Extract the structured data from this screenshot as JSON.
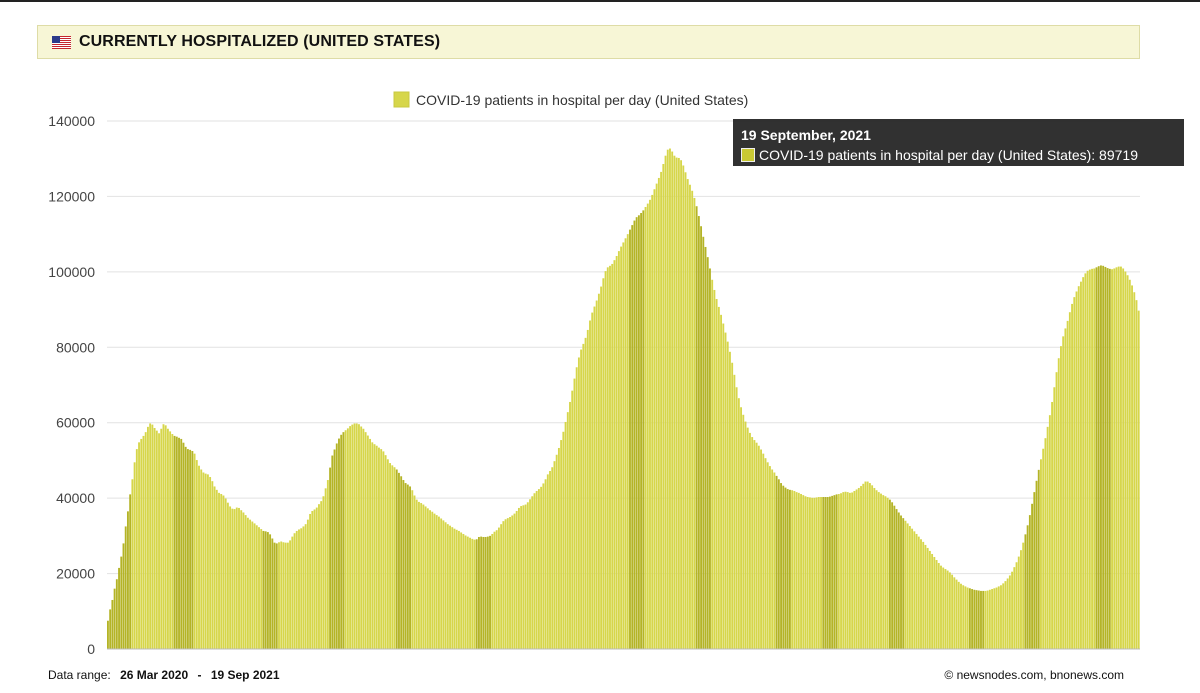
{
  "header": {
    "title": "CURRENTLY HOSPITALIZED (UNITED STATES)",
    "flag_icon": "us-flag-icon"
  },
  "tooltip": {
    "date": "19 September, 2021",
    "series_label": "COVID-19 patients in hospital per day (United States): 89719",
    "swatch_color": "#c9c934"
  },
  "footer": {
    "range_label": "Data range:",
    "range_start": "26 Mar 2020",
    "range_sep": "-",
    "range_end": "19 Sep 2021",
    "copyright": "©  newsnodes.com, bnonews.com"
  },
  "chart_data": {
    "type": "bar",
    "title": "",
    "xlabel": "",
    "ylabel": "",
    "ylim": [
      0,
      140000
    ],
    "yticks": [
      0,
      20000,
      40000,
      60000,
      80000,
      100000,
      120000,
      140000
    ],
    "grid": true,
    "legend_position": "top-center",
    "bar_color": "#d6d64a",
    "highlight_color": "#b4b426",
    "x_start": "2020-03-26",
    "x_end": "2021-09-19",
    "series": [
      {
        "name": "COVID-19 patients in hospital per day (United States)",
        "values": [
          7500,
          10500,
          13000,
          16000,
          18500,
          21500,
          24500,
          28000,
          32500,
          36500,
          41000,
          45000,
          49500,
          53000,
          54800,
          55700,
          56500,
          57500,
          58900,
          59800,
          59500,
          58600,
          57900,
          57200,
          58400,
          59600,
          59300,
          58400,
          57700,
          57000,
          56500,
          56300,
          56000,
          55700,
          54700,
          53600,
          53000,
          52800,
          52500,
          51800,
          50100,
          48600,
          47600,
          46800,
          46500,
          46300,
          45600,
          44500,
          43100,
          42200,
          41400,
          41100,
          40700,
          39900,
          38800,
          37800,
          37200,
          37100,
          37500,
          37400,
          36800,
          36200,
          35500,
          34800,
          34300,
          33800,
          33300,
          32800,
          32300,
          31800,
          31300,
          31200,
          31000,
          30400,
          29300,
          28200,
          28000,
          28300,
          28500,
          28300,
          28200,
          28200,
          28800,
          29800,
          30700,
          31300,
          31700,
          32000,
          32500,
          33100,
          34300,
          35800,
          36600,
          37000,
          37500,
          38400,
          39200,
          40500,
          42600,
          44800,
          48100,
          51300,
          52900,
          54500,
          55800,
          56800,
          57500,
          58000,
          58500,
          59100,
          59500,
          59800,
          59800,
          59600,
          59000,
          58400,
          57500,
          56600,
          55700,
          54800,
          54300,
          53900,
          53400,
          53000,
          52400,
          51400,
          50300,
          49300,
          48700,
          48200,
          47600,
          46700,
          45800,
          44800,
          44000,
          43600,
          43100,
          42100,
          40700,
          39600,
          39000,
          38700,
          38300,
          37800,
          37300,
          36800,
          36400,
          35900,
          35500,
          35100,
          34600,
          34100,
          33600,
          33100,
          32700,
          32300,
          31900,
          31600,
          31300,
          30900,
          30500,
          30100,
          29800,
          29500,
          29200,
          29000,
          29100,
          29700,
          29800,
          29700,
          29700,
          29800,
          30000,
          30500,
          31100,
          31500,
          32200,
          33100,
          33900,
          34400,
          34700,
          35000,
          35400,
          35900,
          36600,
          37400,
          37900,
          38100,
          38300,
          38900,
          39700,
          40500,
          41300,
          41900,
          42400,
          43000,
          43900,
          45000,
          46300,
          47200,
          48200,
          49800,
          51500,
          53300,
          55400,
          57600,
          60200,
          62800,
          65500,
          68500,
          71700,
          74700,
          77300,
          79400,
          80900,
          82500,
          84600,
          87100,
          89200,
          90800,
          92400,
          94200,
          96100,
          98300,
          100200,
          101200,
          101600,
          102100,
          103100,
          104200,
          105500,
          106700,
          107800,
          108900,
          110000,
          111200,
          112400,
          113600,
          114500,
          115000,
          115600,
          116300,
          117200,
          118100,
          119100,
          120400,
          121900,
          123400,
          124900,
          126500,
          128600,
          130800,
          132400,
          132700,
          131900,
          130800,
          130300,
          130200,
          129600,
          128200,
          126400,
          124600,
          123100,
          121500,
          119600,
          117400,
          114800,
          112100,
          109300,
          106600,
          103900,
          100900,
          97900,
          95200,
          92800,
          90700,
          88600,
          86300,
          83900,
          81500,
          78800,
          75900,
          72700,
          69400,
          66500,
          64100,
          62100,
          60300,
          58700,
          57300,
          56200,
          55400,
          54700,
          53900,
          52900,
          51800,
          50600,
          49500,
          48500,
          47600,
          46800,
          45900,
          45000,
          44000,
          43300,
          42800,
          42400,
          42200,
          42100,
          41900,
          41600,
          41400,
          41100,
          40800,
          40500,
          40300,
          40200,
          40100,
          40100,
          40200,
          40300,
          40300,
          40300,
          40300,
          40300,
          40400,
          40600,
          40800,
          41000,
          41100,
          41300,
          41600,
          41700,
          41600,
          41400,
          41500,
          41900,
          42300,
          42700,
          43200,
          43800,
          44400,
          44400,
          44000,
          43400,
          42700,
          42100,
          41600,
          41200,
          40800,
          40500,
          40100,
          39600,
          38900,
          38000,
          37100,
          36200,
          35400,
          34700,
          34000,
          33300,
          32600,
          31900,
          31200,
          30500,
          29800,
          29100,
          28400,
          27600,
          26800,
          26000,
          25200,
          24400,
          23600,
          22800,
          22100,
          21600,
          21200,
          20800,
          20300,
          19700,
          19000,
          18400,
          17800,
          17300,
          16900,
          16600,
          16300,
          16100,
          15900,
          15700,
          15600,
          15500,
          15400,
          15400,
          15400,
          15500,
          15700,
          15900,
          16100,
          16300,
          16600,
          16900,
          17400,
          18000,
          18700,
          19500,
          20500,
          21700,
          23000,
          24500,
          26200,
          28200,
          30400,
          32800,
          35500,
          38500,
          41600,
          44600,
          47500,
          50300,
          53100,
          55900,
          58900,
          62000,
          65500,
          69400,
          73400,
          77100,
          80300,
          82900,
          85000,
          87000,
          89300,
          91500,
          93300,
          94800,
          96200,
          97400,
          98600,
          99600,
          100300,
          100600,
          100800,
          100900,
          101200,
          101500,
          101700,
          101600,
          101300,
          101000,
          100800,
          100700,
          100900,
          101200,
          101400,
          101400,
          100900,
          100100,
          99100,
          97900,
          96400,
          94600,
          92500,
          89719
        ],
        "highlight_indices": [
          0,
          1,
          2,
          3,
          4,
          5,
          6,
          7,
          8,
          9,
          10,
          30,
          31,
          32,
          33,
          34,
          35,
          36,
          37,
          38,
          70,
          71,
          72,
          73,
          74,
          75,
          76,
          100,
          101,
          102,
          103,
          104,
          105,
          106,
          130,
          131,
          132,
          133,
          134,
          135,
          136,
          166,
          167,
          168,
          169,
          170,
          171,
          172,
          235,
          236,
          237,
          238,
          239,
          240,
          241,
          265,
          266,
          267,
          268,
          269,
          270,
          271,
          301,
          302,
          303,
          304,
          305,
          306,
          307,
          322,
          323,
          324,
          325,
          326,
          327,
          328,
          352,
          353,
          354,
          355,
          356,
          357,
          358,
          388,
          389,
          390,
          391,
          392,
          393,
          394,
          413,
          414,
          415,
          416,
          417,
          418,
          419,
          445,
          446,
          447,
          448,
          449,
          450,
          451,
          518,
          519,
          520,
          521,
          522,
          523,
          524,
          525,
          526,
          527,
          528
        ]
      }
    ]
  }
}
